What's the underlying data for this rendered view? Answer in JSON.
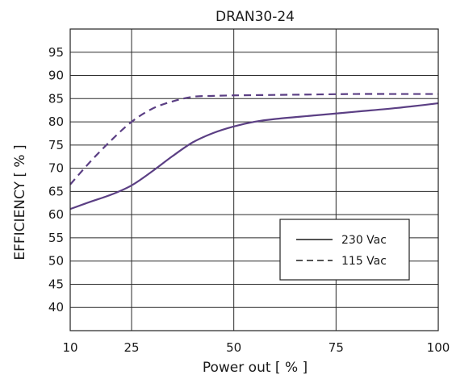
{
  "chart_data": {
    "type": "line",
    "title": "DRAN30-24",
    "xlabel": "Power  out [ % ]",
    "ylabel": "EFFICIENCY [ % ]",
    "xlim": [
      10,
      100
    ],
    "ylim": [
      35,
      100
    ],
    "x_ticks": [
      10,
      25,
      50,
      75,
      100
    ],
    "y_ticks": [
      40,
      45,
      50,
      55,
      60,
      65,
      70,
      75,
      80,
      85,
      90,
      95
    ],
    "grid": true,
    "legend_position": "bottom-right",
    "line_color": "#5b3f84",
    "series": [
      {
        "name": "230 Vac",
        "style": "solid",
        "x": [
          10,
          15,
          20,
          25,
          30,
          35,
          40,
          45,
          50,
          55,
          60,
          70,
          80,
          90,
          100
        ],
        "y": [
          61.2,
          62.8,
          64.3,
          66.3,
          69.3,
          72.6,
          75.6,
          77.6,
          79.0,
          80.0,
          80.6,
          81.4,
          82.2,
          83.0,
          84.0
        ]
      },
      {
        "name": "115 Vac",
        "style": "dashed",
        "x": [
          10,
          15,
          20,
          25,
          30,
          35,
          40,
          45,
          50,
          60,
          70,
          80,
          90,
          100
        ],
        "y": [
          66.5,
          71.5,
          76.0,
          80.0,
          82.8,
          84.4,
          85.4,
          85.6,
          85.7,
          85.8,
          85.9,
          86.0,
          86.0,
          86.0
        ]
      }
    ]
  }
}
